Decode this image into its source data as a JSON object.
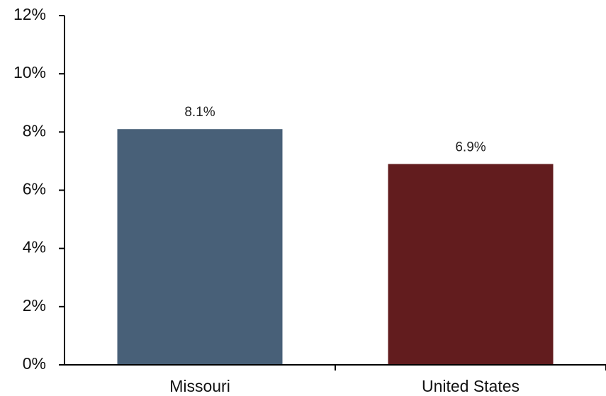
{
  "chart_data": {
    "type": "bar",
    "categories": [
      "Missouri",
      "United States"
    ],
    "values": [
      8.1,
      6.9
    ],
    "data_labels": [
      "8.1%",
      "6.9%"
    ],
    "colors": [
      "#486078",
      "#621C1E"
    ],
    "ylim": [
      0,
      12
    ],
    "yticks": [
      0,
      2,
      4,
      6,
      8,
      10,
      12
    ],
    "ytick_labels": [
      "0%",
      "2%",
      "4%",
      "6%",
      "8%",
      "10%",
      "12%"
    ],
    "grid": false,
    "legend": "none",
    "title": "",
    "xlabel": "",
    "ylabel": ""
  }
}
